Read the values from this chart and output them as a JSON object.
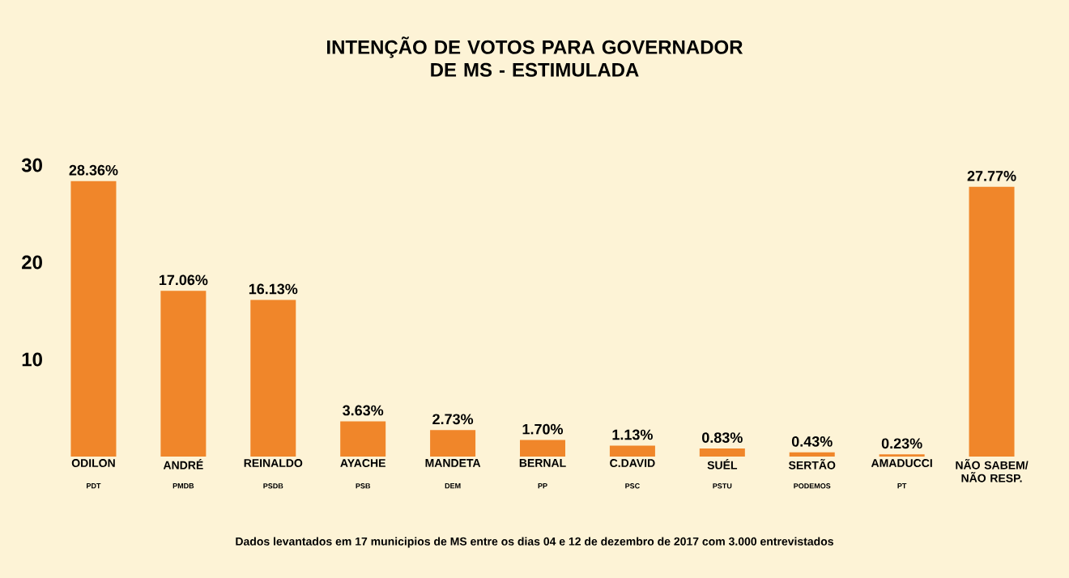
{
  "chart_data": {
    "type": "bar",
    "title": "INTENÇÃO DE VOTOS PARA GOVERNADOR\nDE MS - ESTIMULADA",
    "categories": [
      "ODILON",
      "ANDRÉ",
      "REINALDO",
      "AYACHE",
      "MANDETA",
      "BERNAL",
      "C.DAVID",
      "SUÉL",
      "SERTÃO",
      "AMADUCCI",
      "NÃO SABEM/ NÃO RESP."
    ],
    "values": [
      28.36,
      17.06,
      16.13,
      3.63,
      2.73,
      1.7,
      1.13,
      0.83,
      0.43,
      0.23,
      27.77
    ],
    "value_labels": [
      "28.36%",
      "17.06%",
      "16.13%",
      "3.63%",
      "2.73%",
      "1.70%",
      "1.13%",
      "0.83%",
      "0.43%",
      "0.23%",
      "27.77%"
    ],
    "color": "#f0862a",
    "ylim": [
      0,
      30
    ],
    "yticks": [
      10,
      20,
      30
    ],
    "annotations": [
      "PDT",
      "PMDB",
      "PSDB",
      "PSB",
      "DEM",
      "PP",
      "PSC",
      "PSTU",
      "PODEMOS",
      "PT",
      "Dados levantados em 17 municipios de MS entre os dias 04 e 12 de dezembro de 2017 com 3.000 entrevistados"
    ]
  }
}
